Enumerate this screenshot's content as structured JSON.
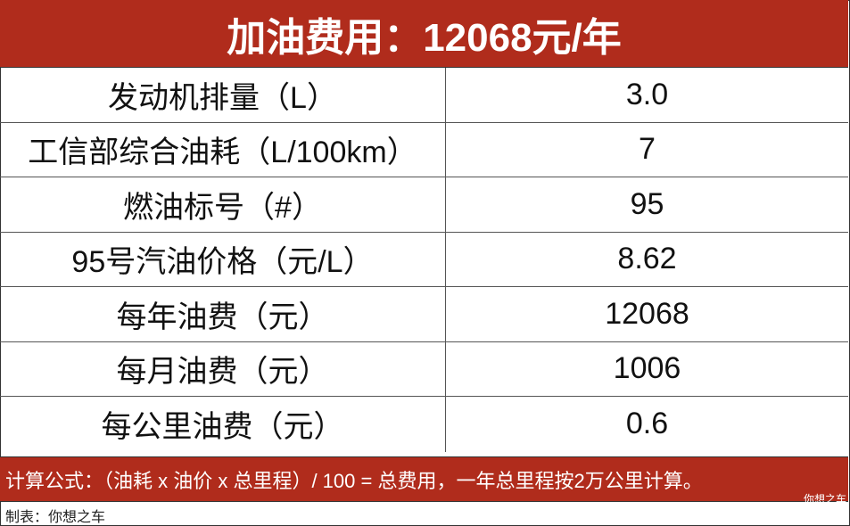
{
  "title": "加油费用：12068元/年",
  "rows": [
    {
      "label": "发动机排量（L）",
      "value": "3.0"
    },
    {
      "label": "工信部综合油耗（L/100km）",
      "value": "7"
    },
    {
      "label": "燃油标号（#）",
      "value": "95"
    },
    {
      "label": "95号汽油价格（元/L）",
      "value": "8.62"
    },
    {
      "label": "每年油费（元）",
      "value": "12068"
    },
    {
      "label": "每月油费（元）",
      "value": "1006"
    },
    {
      "label": "每公里油费（元）",
      "value": "0.6"
    }
  ],
  "formula": "计算公式：（油耗 x 油价 x 总里程）/ 100 = 总费用，一年总里程按2万公里计算。",
  "watermark": "你想之车",
  "credit": "制表：你想之车",
  "colors": {
    "accent": "#b02c1c"
  }
}
